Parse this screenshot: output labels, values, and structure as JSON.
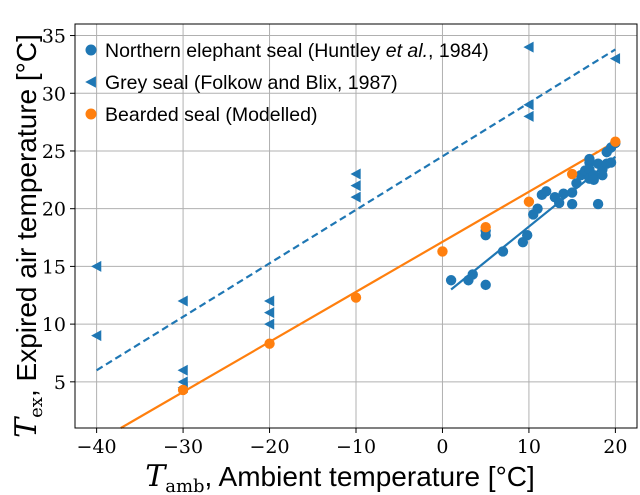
{
  "chart_data": {
    "type": "scatter",
    "xlabel": {
      "symbol": "T",
      "subscript": "amb",
      "text": ", Ambient temperature [°C]"
    },
    "ylabel": {
      "symbol": "T",
      "subscript": "ex",
      "text": ", Expired air temperature [°C]"
    },
    "xlim": [
      -42.5,
      22.5
    ],
    "ylim": [
      1,
      36
    ],
    "xticks": [
      -40,
      -30,
      -20,
      -10,
      0,
      10,
      20
    ],
    "xtick_labels": [
      "−40",
      "−30",
      "−20",
      "−10",
      "0",
      "10",
      "20"
    ],
    "yticks": [
      5,
      10,
      15,
      20,
      25,
      30,
      35
    ],
    "ytick_labels": [
      "5",
      "10",
      "15",
      "20",
      "25",
      "30",
      "35"
    ],
    "grid": true,
    "legend_position": "top-left",
    "series": [
      {
        "name_parts": [
          "Northern elephant seal (Huntley ",
          "et al.",
          ", 1984)"
        ],
        "marker": "circle",
        "color": "#1f77b4",
        "points": [
          [
            1,
            13.8
          ],
          [
            3,
            13.8
          ],
          [
            3.5,
            14.3
          ],
          [
            5,
            13.4
          ],
          [
            5,
            17.7
          ],
          [
            5,
            18.1
          ],
          [
            7,
            16.3
          ],
          [
            9.3,
            17.1
          ],
          [
            9.8,
            17.7
          ],
          [
            10.5,
            19.5
          ],
          [
            11,
            20
          ],
          [
            11.5,
            21.2
          ],
          [
            12,
            21.5
          ],
          [
            13,
            21
          ],
          [
            13.5,
            20.5
          ],
          [
            14,
            21.3
          ],
          [
            15,
            20.4
          ],
          [
            15,
            21.4
          ],
          [
            15.5,
            22.2
          ],
          [
            16,
            22.9
          ],
          [
            16.5,
            23.3
          ],
          [
            17,
            24
          ],
          [
            17,
            24.3
          ],
          [
            17,
            23.4
          ],
          [
            17,
            22.6
          ],
          [
            17.5,
            22.9
          ],
          [
            17.5,
            22.5
          ],
          [
            18,
            23.9
          ],
          [
            18,
            20.4
          ],
          [
            18.5,
            23.4
          ],
          [
            18.5,
            22.9
          ],
          [
            19,
            23.9
          ],
          [
            19,
            24.9
          ],
          [
            19.5,
            24
          ],
          [
            19.5,
            25.3
          ],
          [
            20,
            25.7
          ]
        ],
        "fit": {
          "x": [
            1,
            20
          ],
          "y": [
            13.0,
            24.5
          ]
        }
      },
      {
        "name": "Grey seal (Folkow and Blix, 1987)",
        "marker": "triangle-left",
        "color": "#1f77b4",
        "points": [
          [
            -40,
            15
          ],
          [
            -40,
            9
          ],
          [
            -30,
            12
          ],
          [
            -30,
            6
          ],
          [
            -30,
            5
          ],
          [
            -30,
            4.5
          ],
          [
            -20,
            12
          ],
          [
            -20,
            11
          ],
          [
            -20,
            10
          ],
          [
            -10,
            23
          ],
          [
            -10,
            22
          ],
          [
            -10,
            21
          ],
          [
            10,
            34
          ],
          [
            10,
            29
          ],
          [
            10,
            28
          ],
          [
            20,
            33
          ]
        ],
        "fit": {
          "x": [
            -40,
            20
          ],
          "y": [
            6.0,
            33.8
          ],
          "dashed": true
        }
      },
      {
        "name": "Bearded seal (Modelled)",
        "marker": "circle",
        "color": "#ff7f0e",
        "points": [
          [
            -30,
            4.3
          ],
          [
            -20,
            8.3
          ],
          [
            -10,
            12.3
          ],
          [
            0,
            16.3
          ],
          [
            5,
            18.4
          ],
          [
            10,
            20.6
          ],
          [
            15,
            23
          ],
          [
            20,
            25.8
          ]
        ],
        "fit": {
          "x": [
            -37.2,
            20
          ],
          "y": [
            1,
            25.8
          ]
        }
      }
    ]
  }
}
